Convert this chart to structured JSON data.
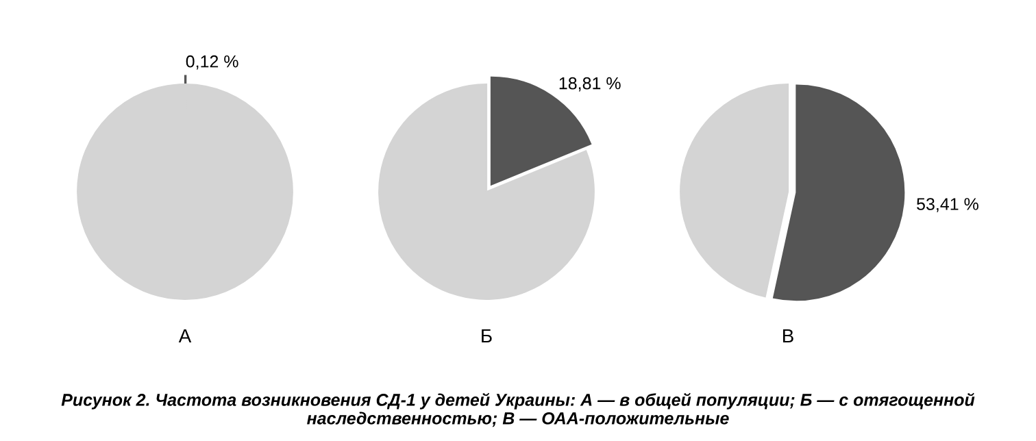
{
  "chart_data": [
    {
      "type": "pie",
      "categories": [
        null,
        null
      ],
      "values": [
        0.12,
        99.88
      ],
      "colors": [
        "#555555",
        "#d4d4d4"
      ],
      "value_labels": [
        "0,12 %",
        null
      ],
      "xlabel": "А"
    },
    {
      "type": "pie",
      "categories": [
        null,
        null
      ],
      "values": [
        18.81,
        81.19
      ],
      "colors": [
        "#555555",
        "#d4d4d4"
      ],
      "value_labels": [
        "18,81 %",
        null
      ],
      "xlabel": "Б"
    },
    {
      "type": "pie",
      "categories": [
        null,
        null
      ],
      "values": [
        53.41,
        46.59
      ],
      "colors": [
        "#555555",
        "#d4d4d4"
      ],
      "value_labels": [
        "53,41 %",
        null
      ],
      "xlabel": "В",
      "annotations": [
        "Рисунок 2. Частота возникновения СД-1 у детей Украины: А — в общей популяции; Б — с отягощенной наследственностью; В — ОАА-положительные"
      ]
    }
  ]
}
